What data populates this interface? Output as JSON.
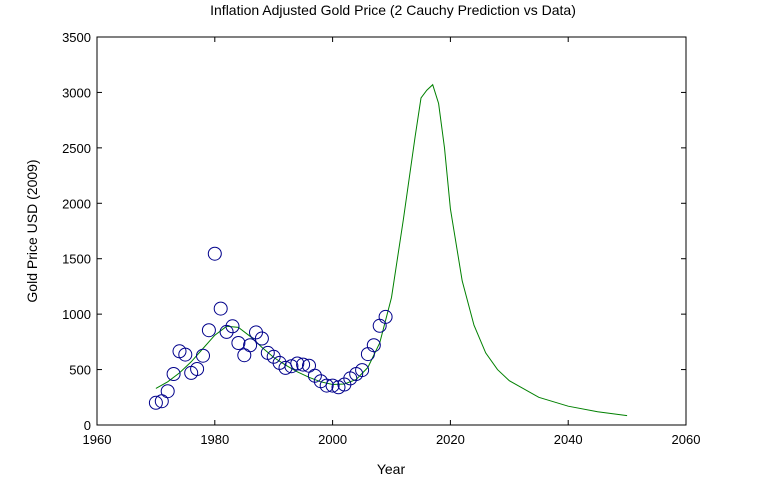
{
  "chart_data": {
    "type": "line",
    "title": "Inflation Adjusted Gold Price (2 Cauchy Prediction vs Data)",
    "xlabel": "Year",
    "ylabel": "Gold Price USD (2009)",
    "xlim": [
      1960,
      2060
    ],
    "ylim": [
      0,
      3500
    ],
    "xticks": [
      1960,
      1980,
      2000,
      2020,
      2040,
      2060
    ],
    "yticks": [
      0,
      500,
      1000,
      1500,
      2000,
      2500,
      3000,
      3500
    ],
    "grid": false,
    "legend": "none",
    "series": [
      {
        "style": "scatter-circles",
        "color": "#00008b",
        "x": [
          1970,
          1971,
          1972,
          1973,
          1974,
          1975,
          1976,
          1977,
          1978,
          1979,
          1980,
          1981,
          1982,
          1983,
          1984,
          1985,
          1986,
          1987,
          1988,
          1989,
          1990,
          1991,
          1992,
          1993,
          1994,
          1995,
          1996,
          1997,
          1998,
          1999,
          2000,
          2001,
          2002,
          2003,
          2004,
          2005,
          2006,
          2007,
          2008,
          2009
        ],
        "y": [
          200,
          215,
          305,
          460,
          665,
          635,
          470,
          505,
          625,
          855,
          1545,
          1050,
          840,
          890,
          740,
          630,
          720,
          835,
          780,
          650,
          615,
          560,
          515,
          530,
          555,
          545,
          535,
          445,
          395,
          355,
          355,
          340,
          365,
          420,
          460,
          495,
          640,
          720,
          895,
          975
        ]
      },
      {
        "style": "line",
        "color": "#008000",
        "x": [
          1970,
          1972,
          1974,
          1976,
          1978,
          1980,
          1982,
          1984,
          1986,
          1988,
          1990,
          1992,
          1994,
          1996,
          1998,
          2000,
          2002,
          2004,
          2006,
          2008,
          2010,
          2012,
          2014,
          2015,
          2016,
          2017,
          2018,
          2019,
          2020,
          2022,
          2024,
          2026,
          2028,
          2030,
          2035,
          2040,
          2045,
          2050
        ],
        "y": [
          330,
          390,
          470,
          570,
          690,
          810,
          890,
          880,
          800,
          700,
          610,
          540,
          480,
          430,
          390,
          365,
          370,
          410,
          520,
          740,
          1150,
          1850,
          2600,
          2950,
          3020,
          3070,
          2900,
          2500,
          1950,
          1300,
          900,
          650,
          500,
          400,
          250,
          170,
          120,
          85
        ]
      }
    ]
  }
}
